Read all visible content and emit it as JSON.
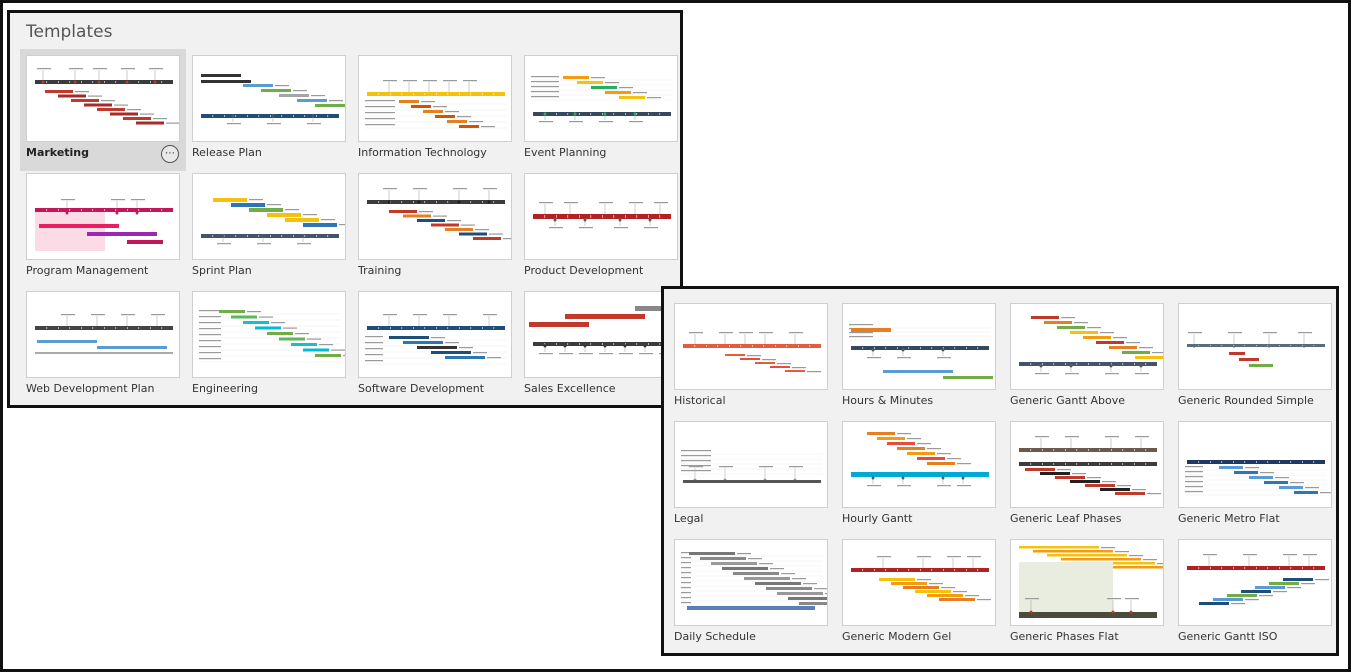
{
  "title": "Templates",
  "group_a": [
    {
      "label": "Marketing",
      "selected": true
    },
    {
      "label": "Release Plan"
    },
    {
      "label": "Information Technology"
    },
    {
      "label": "Event Planning"
    },
    {
      "label": "Program Management"
    },
    {
      "label": "Sprint Plan"
    },
    {
      "label": "Training"
    },
    {
      "label": "Product Development"
    },
    {
      "label": "Web Development Plan"
    },
    {
      "label": "Engineering"
    },
    {
      "label": "Software Development"
    },
    {
      "label": "Sales Excellence"
    }
  ],
  "group_b": [
    {
      "label": "Historical"
    },
    {
      "label": "Hours & Minutes"
    },
    {
      "label": "Generic Gantt Above"
    },
    {
      "label": "Generic Rounded Simple"
    },
    {
      "label": "Legal"
    },
    {
      "label": "Hourly Gantt"
    },
    {
      "label": "Generic Leaf Phases"
    },
    {
      "label": "Generic Metro Flat"
    },
    {
      "label": "Daily Schedule"
    },
    {
      "label": "Generic Modern Gel"
    },
    {
      "label": "Generic Phases Flat"
    },
    {
      "label": "Generic Gantt ISO"
    }
  ],
  "more_icon": "ellipsis-icon",
  "colors": {
    "panel": "#f1f1f1",
    "selected": "#d9d9d9",
    "frame": "#111111"
  }
}
